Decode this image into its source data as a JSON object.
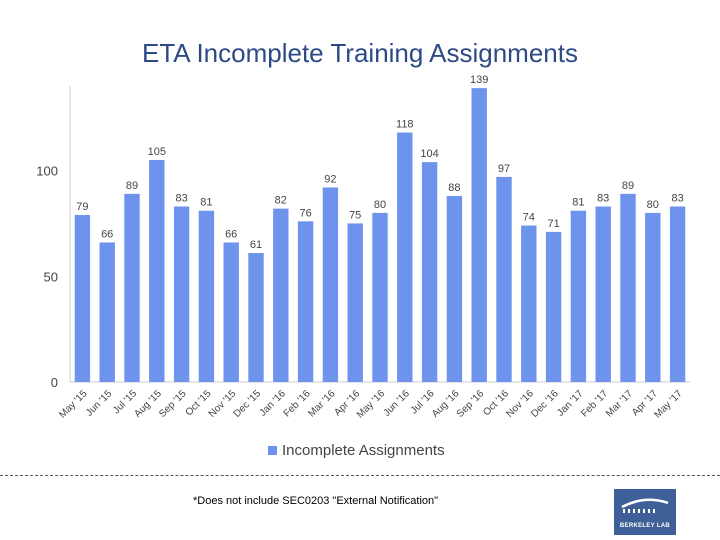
{
  "title": "ETA Incomplete Training Assignments",
  "footnote": "*Does not include SEC0203 \"External Notification\"",
  "logo": {
    "text": "BERKELEY LAB"
  },
  "colors": {
    "bar": "#6d93ec",
    "title": "#2d4a87",
    "axis": "#cccccc",
    "logo_bg": "#3e5f97"
  },
  "chart_data": {
    "type": "bar",
    "title": "ETA Incomplete Training Assignments",
    "xlabel": "",
    "ylabel": "",
    "categories": [
      "May '15",
      "Jun '15",
      "Jul '15",
      "Aug '15",
      "Sep '15",
      "Oct '15",
      "Nov '15",
      "Dec '15",
      "Jan '16",
      "Feb '16",
      "Mar '16",
      "Apr '16",
      "May '16",
      "Jun '16",
      "Jul '16",
      "Aug '16",
      "Sep '16",
      "Oct '16",
      "Nov '16",
      "Dec '16",
      "Jan '17",
      "Feb '17",
      "Mar '17",
      "Apr '17",
      "May '17"
    ],
    "series": [
      {
        "name": "Incomplete Assignments",
        "values": [
          79,
          66,
          89,
          105,
          83,
          81,
          66,
          61,
          82,
          76,
          92,
          75,
          80,
          118,
          104,
          88,
          139,
          97,
          74,
          71,
          81,
          83,
          89,
          80,
          83
        ]
      }
    ],
    "yticks": [
      0,
      50,
      100
    ],
    "ylim": [
      0,
      140
    ],
    "grid": false,
    "legend_position": "bottom",
    "data_labels": true
  }
}
